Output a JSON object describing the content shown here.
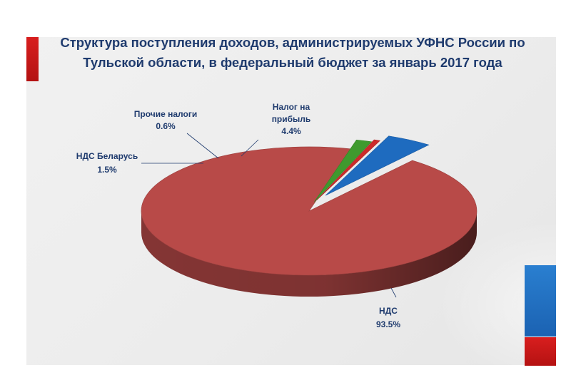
{
  "slide": {
    "title_line1": "Структура поступления доходов, администрируемых УФНС России по",
    "title_line2": "Тульской области, в федеральный бюджет за  январь  2017 года"
  },
  "colors": {
    "accent_red": "#c81919",
    "accent_blue": "#1f6fbf",
    "title": "#1f3b6e"
  },
  "chart_data": {
    "type": "pie",
    "style": "3d-exploded",
    "title": "Структура поступления доходов, администрируемых УФНС России по Тульской области, в федеральный бюджет за  январь  2017 года",
    "legend": "none",
    "slices": [
      {
        "name": "НДС",
        "value": 93.5,
        "label": "93.5%",
        "color": "#b84a48"
      },
      {
        "name": "НДС Беларусь",
        "value": 1.5,
        "label": "1.5%",
        "color": "#3f9a2e"
      },
      {
        "name": "Прочие налоги",
        "value": 0.6,
        "label": "0.6%",
        "color": "#cc2a2a"
      },
      {
        "name": "Налог на прибыль",
        "value": 4.4,
        "label": "4.4%",
        "color": "#1e6bbf"
      }
    ]
  }
}
